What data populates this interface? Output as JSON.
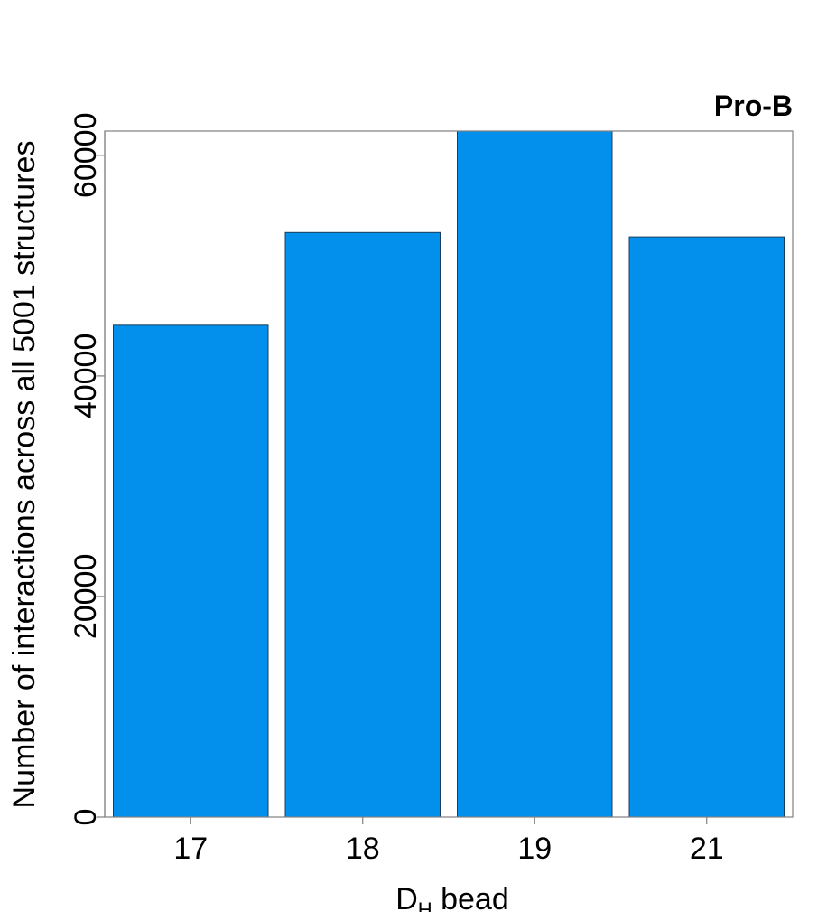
{
  "chart_data": {
    "type": "bar",
    "title": "Pro-B",
    "xlabel": "D",
    "xlabel_subscript": "H",
    "xlabel_suffix": " bead",
    "ylabel": "Number of interactions across all 5001 structures",
    "categories": [
      "17",
      "18",
      "19",
      "21"
    ],
    "values": [
      44600,
      53000,
      62200,
      52600
    ],
    "ylim": [
      0,
      62200
    ],
    "yticks": [
      0,
      20000,
      40000,
      60000
    ],
    "ytick_labels": [
      "0",
      "20000",
      "40000",
      "60000"
    ],
    "grid": false,
    "bar_color": "#0390ed",
    "bar_edge_color": "#1a3f5c"
  }
}
